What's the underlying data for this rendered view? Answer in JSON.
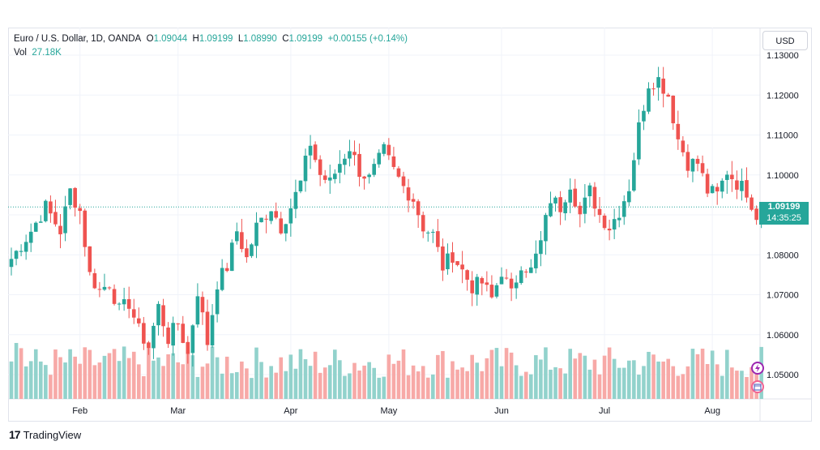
{
  "header": {
    "symbol": "Euro / U.S. Dollar, 1D, OANDA",
    "open_label": "O",
    "open": "1.09044",
    "high_label": "H",
    "high": "1.09199",
    "low_label": "L",
    "low": "1.08990",
    "close_label": "C",
    "close": "1.09199",
    "change": "+0.00155 (+0.14%)",
    "vol_label": "Vol",
    "vol": "27.18K"
  },
  "currency_button": "USD",
  "price_tag": {
    "price": "1.09199",
    "countdown": "14:35:25"
  },
  "brand": {
    "logo": "17",
    "name": "TradingView"
  },
  "colors": {
    "up": "#26a69a",
    "down": "#ef5350",
    "vol_up": "#92d2cc",
    "vol_down": "#f7a9a7",
    "grid": "#f0f3fa"
  },
  "chart_data": {
    "type": "candlestick",
    "ylim": [
      1.045,
      1.13
    ],
    "y_ticks": [
      "1.13000",
      "1.12000",
      "1.11000",
      "1.10000",
      "1.09000",
      "1.08000",
      "1.07000",
      "1.06000",
      "1.05000"
    ],
    "x_months": [
      {
        "label": "Feb",
        "index": 14
      },
      {
        "label": "Mar",
        "index": 34
      },
      {
        "label": "Apr",
        "index": 57
      },
      {
        "label": "May",
        "index": 77
      },
      {
        "label": "Jun",
        "index": 100
      },
      {
        "label": "Jul",
        "index": 121
      },
      {
        "label": "Aug",
        "index": 143
      }
    ],
    "last_price": 1.09199,
    "anchors": [
      [
        0,
        1.079
      ],
      [
        4,
        1.086
      ],
      [
        7,
        1.092
      ],
      [
        10,
        1.086
      ],
      [
        12,
        1.096
      ],
      [
        14,
        1.091
      ],
      [
        16,
        1.075
      ],
      [
        18,
        1.071
      ],
      [
        20,
        1.073
      ],
      [
        22,
        1.066
      ],
      [
        24,
        1.068
      ],
      [
        26,
        1.061
      ],
      [
        28,
        1.057
      ],
      [
        30,
        1.067
      ],
      [
        32,
        1.059
      ],
      [
        34,
        1.063
      ],
      [
        36,
        1.055
      ],
      [
        38,
        1.071
      ],
      [
        40,
        1.058
      ],
      [
        42,
        1.073
      ],
      [
        44,
        1.077
      ],
      [
        46,
        1.086
      ],
      [
        48,
        1.079
      ],
      [
        50,
        1.087
      ],
      [
        53,
        1.092
      ],
      [
        55,
        1.087
      ],
      [
        57,
        1.092
      ],
      [
        59,
        1.098
      ],
      [
        61,
        1.108
      ],
      [
        63,
        1.1
      ],
      [
        65,
        1.098
      ],
      [
        67,
        1.103
      ],
      [
        69,
        1.107
      ],
      [
        71,
        1.101
      ],
      [
        73,
        1.099
      ],
      [
        76,
        1.106
      ],
      [
        78,
        1.101
      ],
      [
        80,
        1.097
      ],
      [
        82,
        1.094
      ],
      [
        84,
        1.087
      ],
      [
        86,
        1.085
      ],
      [
        88,
        1.077
      ],
      [
        90,
        1.08
      ],
      [
        92,
        1.076
      ],
      [
        94,
        1.072
      ],
      [
        96,
        1.073
      ],
      [
        98,
        1.069
      ],
      [
        100,
        1.076
      ],
      [
        102,
        1.07
      ],
      [
        104,
        1.078
      ],
      [
        106,
        1.076
      ],
      [
        108,
        1.083
      ],
      [
        110,
        1.094
      ],
      [
        112,
        1.092
      ],
      [
        114,
        1.098
      ],
      [
        116,
        1.09
      ],
      [
        118,
        1.096
      ],
      [
        120,
        1.09
      ],
      [
        122,
        1.087
      ],
      [
        124,
        1.091
      ],
      [
        126,
        1.097
      ],
      [
        128,
        1.112
      ],
      [
        130,
        1.123
      ],
      [
        132,
        1.124
      ],
      [
        134,
        1.12
      ],
      [
        136,
        1.109
      ],
      [
        138,
        1.103
      ],
      [
        140,
        1.103
      ],
      [
        142,
        1.096
      ],
      [
        144,
        1.095
      ],
      [
        146,
        1.101
      ],
      [
        148,
        1.098
      ],
      [
        150,
        1.096
      ],
      [
        152,
        1.09
      ],
      [
        153,
        1.092
      ]
    ],
    "volume_max": 0.07
  }
}
